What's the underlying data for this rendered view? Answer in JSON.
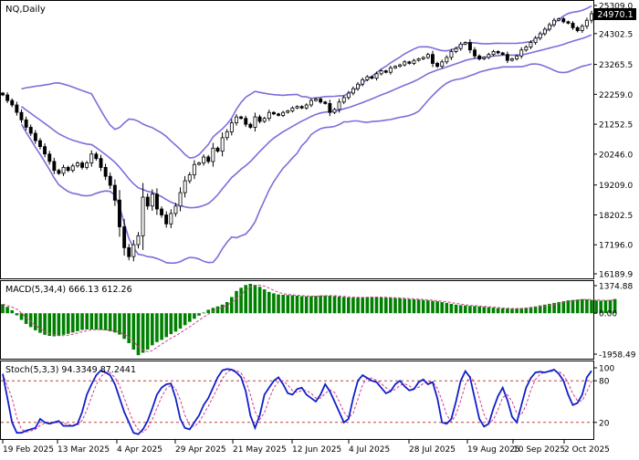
{
  "main_panel": {
    "symbol_label": "NQ,Daily",
    "last_price_label": "24970.1"
  },
  "macd_panel": {
    "label": "MACD(5,34,4) 666.13 612.26"
  },
  "stoch_panel": {
    "label": "Stoch(5,3,3) 94.3349 87.2441"
  },
  "colors": {
    "candle": "#000000",
    "bands": "#7b6fd9",
    "macd_hist": "#008000",
    "macd_signal": "#d23c8c",
    "stoch_main": "#1020c8",
    "stoch_signal": "#d23c8c",
    "last_price_box": "#000000",
    "level_line": "#c04040"
  },
  "chart_data": [
    {
      "type": "line",
      "description": "NQ daily price with Bollinger bands (approximate closes)",
      "title": "NQ,Daily",
      "ylim": [
        16189.9,
        25309.0
      ],
      "y_tick_labels": [
        "25309.0",
        "24302.5",
        "23265.5",
        "22259.0",
        "21252.5",
        "20246.0",
        "19209.0",
        "18202.5",
        "17196.0",
        "16189.9"
      ],
      "x_tick_labels": [
        "19 Feb 2025",
        "13 Mar 2025",
        "4 Apr 2025",
        "29 Apr 2025",
        "21 May 2025",
        "12 Jun 2025",
        "4 Jul 2025",
        "28 Jul 2025",
        "19 Aug 2025",
        "10 Sep 2025",
        "2 Oct 2025"
      ],
      "last_price": 24970.1,
      "series": [
        {
          "values": [
            22240,
            22050,
            21900,
            21650,
            21400,
            21150,
            20950,
            20700,
            20500,
            20250,
            20000,
            19700,
            19600,
            19800,
            19700,
            19850,
            19950,
            19800,
            19950,
            20250,
            20100,
            19800,
            19500,
            19200,
            18700,
            17800,
            17100,
            16800,
            17200,
            17500,
            18800,
            18500,
            18900,
            18400,
            18200,
            17900,
            18250,
            18500,
            18950,
            19350,
            19550,
            19900,
            19950,
            20150,
            20000,
            20450,
            20350,
            20800,
            21000,
            21300,
            21500,
            21450,
            21250,
            21150,
            21500,
            21350,
            21450,
            21650,
            21600,
            21550,
            21650,
            21700,
            21800,
            21850,
            21800,
            21900,
            22050,
            22100,
            22000,
            21950,
            21650,
            21750,
            22000,
            22150,
            22300,
            22450,
            22600,
            22750,
            22850,
            22800,
            22950,
            23050,
            23000,
            23150,
            23200,
            23250,
            23350,
            23300,
            23400,
            23450,
            23500,
            23600,
            23300,
            23200,
            23350,
            23500,
            23700,
            23800,
            23950,
            24000,
            23750,
            23550,
            23450,
            23500,
            23600,
            23700,
            23650,
            23600,
            23400,
            23450,
            23550,
            23750,
            23850,
            24000,
            24150,
            24300,
            24450,
            24600,
            24750,
            24800,
            24700,
            24650,
            24500,
            24400,
            24550,
            24750,
            24970.1
          ]
        }
      ]
    },
    {
      "type": "bar",
      "description": "MACD histogram with signal line",
      "title": "MACD(5,34,4) 666.13 612.26",
      "ylim": [
        -1958.49,
        1374.88
      ],
      "y_tick_labels": [
        "1374.88",
        "0.00",
        "-1958.49"
      ],
      "last_values": {
        "macd": 666.13,
        "signal": 612.26
      },
      "series": [
        {
          "values": [
            420,
            300,
            140,
            -100,
            -310,
            -500,
            -650,
            -800,
            -920,
            -1010,
            -1060,
            -1080,
            -1060,
            -1010,
            -960,
            -900,
            -840,
            -780,
            -760,
            -760,
            -770,
            -780,
            -800,
            -840,
            -900,
            -1000,
            -1200,
            -1400,
            -1700,
            -1960,
            -1850,
            -1700,
            -1500,
            -1350,
            -1250,
            -1120,
            -980,
            -860,
            -720,
            -560,
            -400,
            -260,
            -110,
            30,
            160,
            250,
            320,
            400,
            520,
            760,
            1040,
            1190,
            1320,
            1374.88,
            1330,
            1240,
            1120,
            1000,
            930,
            880,
            860,
            850,
            840,
            820,
            800,
            790,
            800,
            810,
            830,
            830,
            820,
            800,
            780,
            760,
            740,
            730,
            740,
            750,
            760,
            760,
            750,
            740,
            730,
            720,
            710,
            700,
            680,
            660,
            650,
            640,
            620,
            600,
            580,
            560,
            520,
            480,
            440,
            400,
            380,
            360,
            340,
            330,
            320,
            300,
            280,
            260,
            240,
            230,
            220,
            210,
            220,
            240,
            260,
            290,
            320,
            360,
            400,
            440,
            480,
            520,
            560,
            600,
            620,
            640,
            660,
            650,
            620,
            600,
            590,
            600,
            620,
            666.13
          ]
        }
      ]
    },
    {
      "type": "line",
      "description": "Stochastic oscillator with 20/80 levels",
      "title": "Stoch(5,3,3) 94.3349 87.2441",
      "ylim": [
        0,
        100
      ],
      "y_tick_labels": [
        "100",
        "80",
        "20"
      ],
      "levels": [
        80,
        20
      ],
      "last_values": {
        "main": 94.3349,
        "signal": 87.2441
      },
      "series": [
        {
          "values": [
            90,
            55,
            20,
            5,
            5,
            8,
            10,
            12,
            25,
            20,
            18,
            20,
            22,
            15,
            15,
            15,
            18,
            35,
            60,
            75,
            88,
            95,
            92,
            88,
            75,
            55,
            35,
            20,
            5,
            3,
            10,
            22,
            40,
            60,
            70,
            75,
            76,
            55,
            25,
            12,
            10,
            20,
            30,
            45,
            55,
            70,
            85,
            95,
            97,
            96,
            92,
            85,
            65,
            30,
            12,
            30,
            60,
            70,
            80,
            85,
            75,
            62,
            60,
            68,
            70,
            60,
            55,
            50,
            60,
            75,
            65,
            50,
            35,
            20,
            25,
            55,
            80,
            88,
            84,
            80,
            78,
            70,
            62,
            65,
            75,
            80,
            72,
            66,
            68,
            78,
            82,
            75,
            78,
            55,
            20,
            18,
            25,
            50,
            80,
            94,
            85,
            55,
            25,
            14,
            18,
            40,
            58,
            70,
            52,
            28,
            20,
            45,
            70,
            84,
            92,
            93,
            92,
            94,
            96,
            90,
            80,
            60,
            45,
            48,
            60,
            85,
            94.3349
          ]
        }
      ]
    }
  ]
}
